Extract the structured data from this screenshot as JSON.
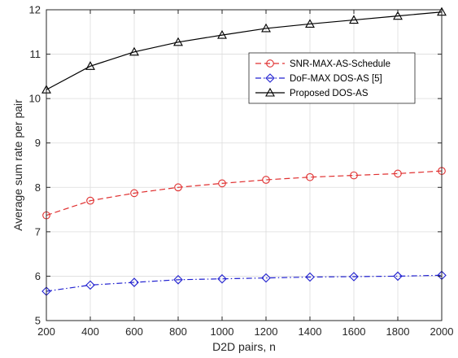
{
  "chart_data": {
    "type": "line",
    "title": "",
    "xlabel": "D2D pairs, n",
    "ylabel": "Average sum rate per pair",
    "xlim": [
      200,
      2000
    ],
    "ylim": [
      5,
      12
    ],
    "x_ticks": [
      "200",
      "400",
      "600",
      "800",
      "1000",
      "1200",
      "1400",
      "1600",
      "1800",
      "2000"
    ],
    "y_ticks": [
      "5",
      "6",
      "7",
      "8",
      "9",
      "10",
      "11",
      "12"
    ],
    "grid": true,
    "legend_position": "upper-right",
    "x": [
      200,
      400,
      600,
      800,
      1000,
      1200,
      1400,
      1600,
      1800,
      2000
    ],
    "series": [
      {
        "name": "SNR-MAX-AS-Schedule",
        "values": [
          7.37,
          7.7,
          7.87,
          8.0,
          8.09,
          8.17,
          8.23,
          8.27,
          8.31,
          8.37
        ],
        "color": "#e03030",
        "line_style": "dashed",
        "marker": "circle"
      },
      {
        "name": "DoF-MAX DOS-AS [5]",
        "values": [
          5.66,
          5.8,
          5.86,
          5.92,
          5.94,
          5.96,
          5.98,
          5.99,
          6.0,
          6.02
        ],
        "color": "#2020d0",
        "line_style": "dash-dot",
        "marker": "diamond"
      },
      {
        "name": "Proposed DOS-AS",
        "values": [
          10.2,
          10.73,
          11.05,
          11.27,
          11.43,
          11.58,
          11.68,
          11.77,
          11.86,
          11.95
        ],
        "color": "#000000",
        "line_style": "solid",
        "marker": "triangle"
      }
    ]
  }
}
